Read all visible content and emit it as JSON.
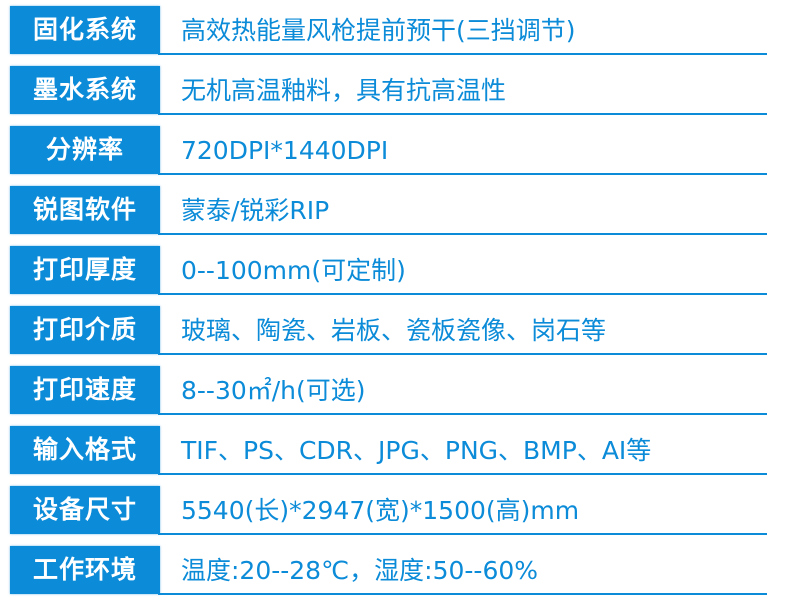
{
  "accent_color": "#0b8bd8",
  "specs": [
    {
      "label": "固化系统",
      "value": "高效热能量风枪提前预干(三挡调节)"
    },
    {
      "label": "墨水系统",
      "value": "无机高温釉料，具有抗高温性"
    },
    {
      "label": "分辨率",
      "value": "720DPI*1440DPI"
    },
    {
      "label": "锐图软件",
      "value": "蒙泰/锐彩RIP"
    },
    {
      "label": "打印厚度",
      "value": "0--100mm(可定制)"
    },
    {
      "label": "打印介质",
      "value": "玻璃、陶瓷、岩板、瓷板瓷像、岗石等"
    },
    {
      "label": "打印速度",
      "value": "8--30㎡/h(可选)"
    },
    {
      "label": "输入格式",
      "value": "TIF、PS、CDR、JPG、PNG、BMP、AI等"
    },
    {
      "label": "设备尺寸",
      "value": "5540(长)*2947(宽)*1500(高)mm"
    },
    {
      "label": "工作环境",
      "value": "温度:20--28℃，湿度:50--60%"
    }
  ]
}
